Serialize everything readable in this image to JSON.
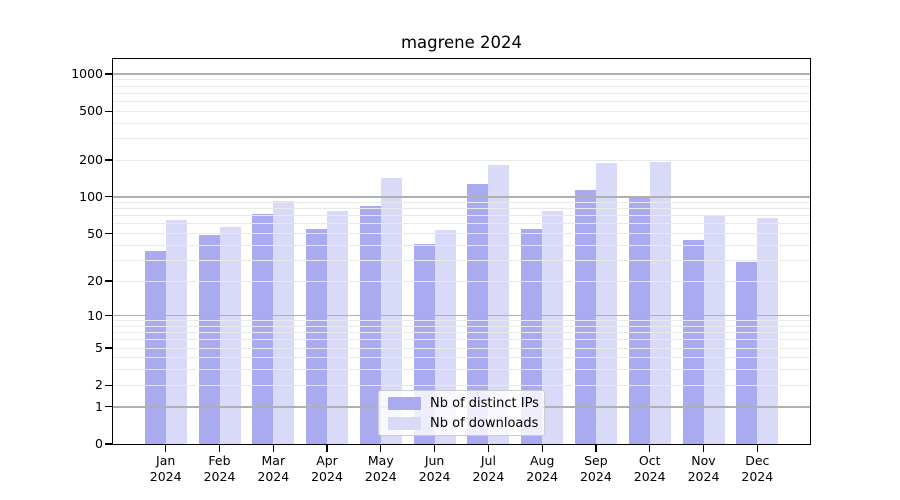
{
  "title": "magrene 2024",
  "chart_data": {
    "type": "bar",
    "title": "magrene 2024",
    "categories": [
      "Jan",
      "Feb",
      "Mar",
      "Apr",
      "May",
      "Jun",
      "Jul",
      "Aug",
      "Sep",
      "Oct",
      "Nov",
      "Dec"
    ],
    "x_tick_year": "2024",
    "series": [
      {
        "name": "Nb of distinct IPs",
        "color": "#aaaaf0",
        "values": [
          36,
          49,
          73,
          54,
          85,
          41,
          128,
          55,
          115,
          100,
          44,
          29
        ]
      },
      {
        "name": "Nb of downloads",
        "color": "#d9d9f8",
        "values": [
          65,
          57,
          93,
          76,
          142,
          53,
          182,
          77,
          190,
          192,
          71,
          67
        ]
      }
    ],
    "y_axis": {
      "scale": "pseudo-log: y position proportional to log10(value+1)",
      "ticks": [
        0,
        1,
        2,
        5,
        10,
        20,
        50,
        100,
        200,
        500,
        1000
      ],
      "major_gridlines": [
        1,
        10,
        100,
        1000
      ],
      "top_value": 1325
    },
    "grid": true,
    "legend_position": "bottom-center-inside"
  },
  "colors": {
    "background": "#ffffff",
    "bar_distinct_ips": "#aaaaf0",
    "bar_downloads": "#d9d9f8",
    "grid_minor": "#e9e9e9",
    "grid_major": "#b0b0b0",
    "spine": "#000000",
    "text": "#000000",
    "legend_border": "#cccccc",
    "legend_background": "rgba(255,255,255,0.8)"
  }
}
